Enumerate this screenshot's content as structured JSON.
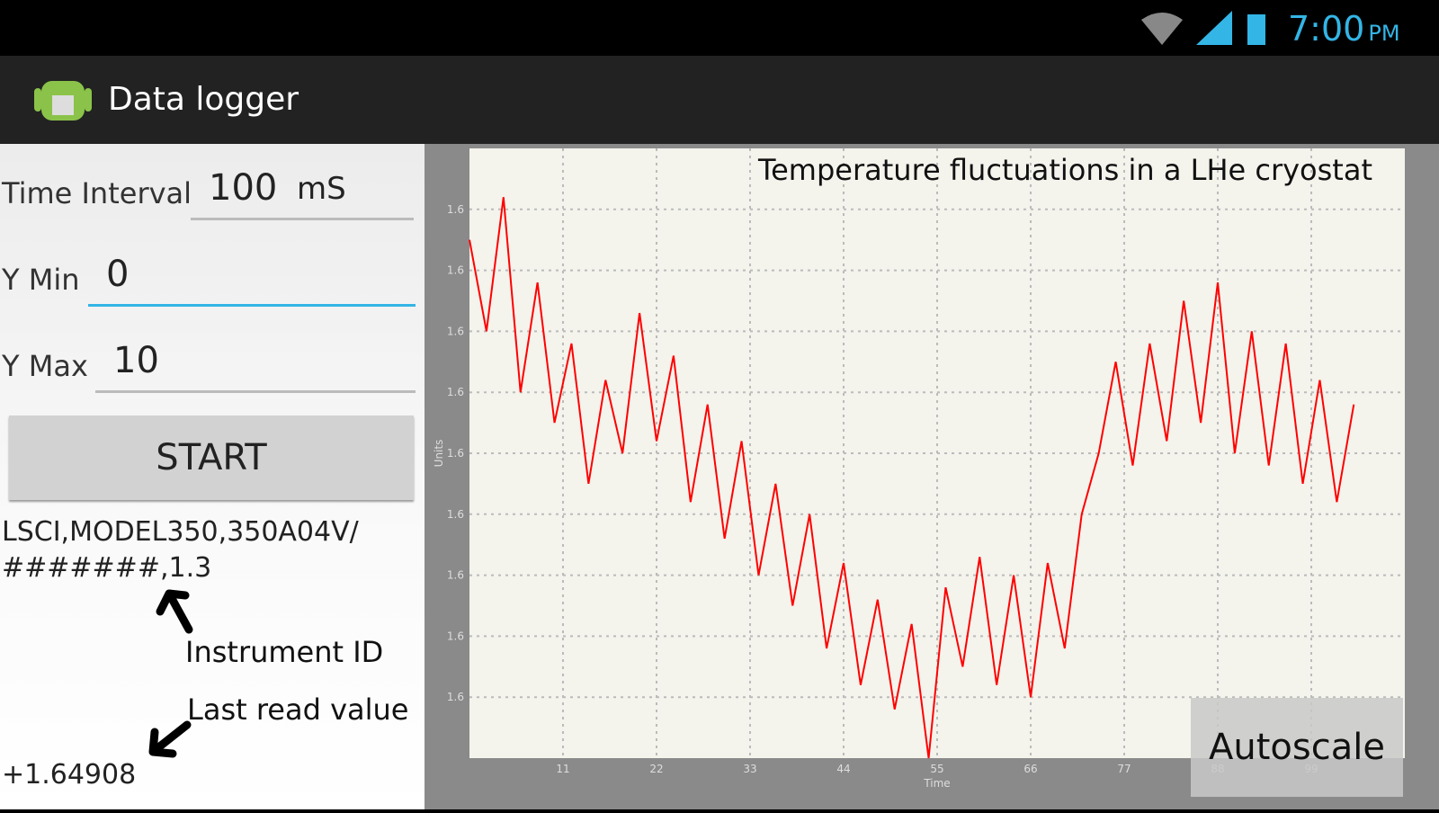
{
  "status_bar": {
    "time": "7:00",
    "ampm": "PM"
  },
  "app_bar": {
    "title": "Data logger"
  },
  "form": {
    "time_interval": {
      "label": "Time Interval",
      "value": 100,
      "unit": "mS"
    },
    "y_min": {
      "label": "Y Min",
      "value": 0
    },
    "y_max": {
      "label": "Y Max",
      "value": 10
    },
    "start_button": "START"
  },
  "instrument_id": [
    "LSCI,MODEL350,350A04V/",
    "#######,1.3"
  ],
  "annotations": {
    "instrument_id": "Instrument ID",
    "last_read_value": "Last read value"
  },
  "last_value": "+1.64908",
  "autoscale_button": "Autoscale",
  "chart_data": {
    "type": "line",
    "title": "Temperature fluctuations in a LHe cryostat",
    "x_label": "Time",
    "y_label": "Units",
    "x": [
      0,
      2,
      4,
      6,
      8,
      10,
      12,
      14,
      16,
      18,
      20,
      22,
      24,
      26,
      28,
      30,
      32,
      34,
      36,
      38,
      40,
      42,
      44,
      46,
      48,
      50,
      52,
      54,
      56,
      58,
      60,
      62,
      64,
      66,
      68,
      70,
      72,
      74,
      76,
      78,
      80,
      82,
      84,
      86,
      88,
      90,
      92,
      94,
      96,
      98,
      100,
      102,
      104
    ],
    "values": [
      1.64885,
      1.6487,
      1.64892,
      1.6486,
      1.64878,
      1.64855,
      1.64868,
      1.64845,
      1.64862,
      1.6485,
      1.64873,
      1.64852,
      1.64866,
      1.64842,
      1.64858,
      1.64836,
      1.64852,
      1.6483,
      1.64845,
      1.64825,
      1.6484,
      1.64818,
      1.64832,
      1.64812,
      1.64826,
      1.64808,
      1.64822,
      1.648,
      1.64828,
      1.64815,
      1.64833,
      1.64812,
      1.6483,
      1.6481,
      1.64832,
      1.64818,
      1.6484,
      1.6485,
      1.64865,
      1.64848,
      1.64868,
      1.64852,
      1.64875,
      1.64855,
      1.64878,
      1.6485,
      1.6487,
      1.64848,
      1.64868,
      1.64845,
      1.64862,
      1.64842,
      1.64858
    ],
    "color": "#ff0000",
    "xlim": [
      0,
      110
    ],
    "xticks": [
      11,
      22,
      33,
      44,
      55,
      66,
      77,
      88,
      99
    ],
    "ylim": [
      1.648,
      1.649
    ],
    "yticks": [
      {
        "value": 1.6481,
        "label": "1.6"
      },
      {
        "value": 1.6482,
        "label": "1.6"
      },
      {
        "value": 1.6483,
        "label": "1.6"
      },
      {
        "value": 1.6484,
        "label": "1.6"
      },
      {
        "value": 1.6485,
        "label": "1.6"
      },
      {
        "value": 1.6486,
        "label": "1.6"
      },
      {
        "value": 1.6487,
        "label": "1.6"
      },
      {
        "value": 1.6488,
        "label": "1.6"
      },
      {
        "value": 1.6489,
        "label": "1.6"
      }
    ],
    "grid": true
  }
}
